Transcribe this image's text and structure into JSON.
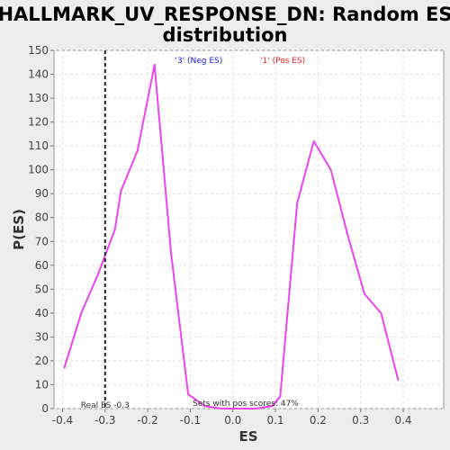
{
  "chart_data": {
    "type": "line",
    "title_lines": [
      "HALLMARK_UV_RESPONSE_DN: Random ES",
      "distribution"
    ],
    "xlabel": "ES",
    "ylabel": "P(ES)",
    "xlim": [
      -0.42,
      0.495
    ],
    "ylim": [
      0,
      150
    ],
    "xticks": [
      -0.4,
      -0.3,
      -0.2,
      -0.1,
      0.0,
      0.1,
      0.2,
      0.3,
      0.4
    ],
    "xtick_labels": [
      "-0.4",
      "-0.3",
      "-0.2",
      "-0.1",
      "0.0",
      "0.1",
      "0.2",
      "0.3",
      "0.4"
    ],
    "yticks": [
      0,
      10,
      20,
      30,
      40,
      50,
      60,
      70,
      80,
      90,
      100,
      110,
      120,
      130,
      140,
      150
    ],
    "ytick_labels": [
      "0",
      "10",
      "20",
      "30",
      "40",
      "50",
      "60",
      "70",
      "80",
      "90",
      "100",
      "110",
      "120",
      "130",
      "140",
      "150"
    ],
    "grid": true,
    "series": [
      {
        "color": "#ee44ee",
        "x": [
          -0.396,
          -0.356,
          -0.317,
          -0.277,
          -0.263,
          -0.224,
          -0.184,
          -0.145,
          -0.105,
          -0.066,
          -0.026,
          0.013,
          0.053,
          0.092,
          0.111,
          0.151,
          0.19,
          0.23,
          0.269,
          0.309,
          0.348,
          0.388
        ],
        "y": [
          17,
          40,
          56,
          75,
          91,
          108,
          144,
          65,
          6,
          1,
          0,
          0,
          0,
          1,
          5,
          86,
          112,
          100,
          73,
          48,
          40,
          12
        ]
      }
    ],
    "real_es": -0.3,
    "annotations": {
      "neg_label": "'3' (Neg ES)",
      "neg_color": "#1a1aff",
      "pos_label": "'1' (Pos ES)",
      "pos_color": "#ff2222",
      "real_es_label": "Real ES -0.3",
      "pos_scores_label": "Sets with pos scores: 47%"
    }
  }
}
